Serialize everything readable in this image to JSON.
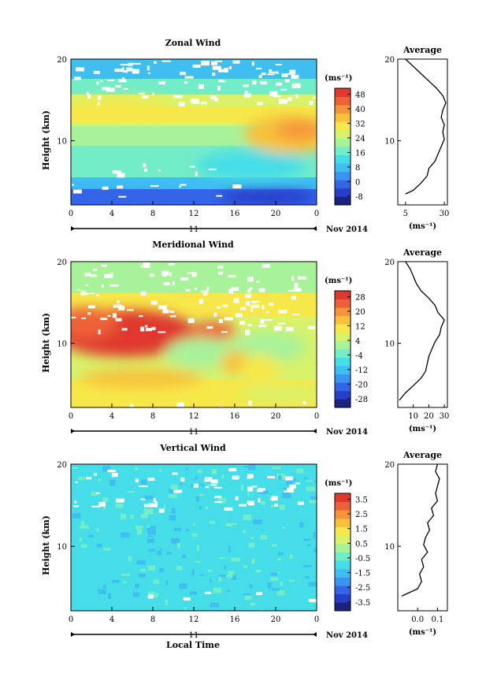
{
  "colors": {
    "scale": [
      "#1a237e",
      "#283ec8",
      "#3465e8",
      "#3b94f0",
      "#3fbef2",
      "#44dde8",
      "#73ecc8",
      "#a8f29a",
      "#d8f26a",
      "#f6e84a",
      "#f8c13a",
      "#f5943a",
      "#ee6038",
      "#e0392e"
    ]
  },
  "chart_data": [
    {
      "type": "heatmap",
      "title": "Zonal Wind",
      "xlabel": "",
      "ylabel": "Height (km)",
      "x_ticks": [
        "0",
        "4",
        "8",
        "12",
        "16",
        "20",
        "0"
      ],
      "y_ticks": [
        "20",
        "10"
      ],
      "date_day": "11",
      "date_label": "Nov 2014",
      "colorbar": {
        "unit": "(ms⁻¹)",
        "ticks": [
          "48",
          "40",
          "32",
          "24",
          "16",
          "8",
          "0",
          "-8"
        ],
        "range": [
          -8,
          48
        ]
      },
      "profile": {
        "title": "Average",
        "x_ticks": [
          "5",
          "30"
        ],
        "xlim": [
          0,
          32
        ],
        "unit": "(ms⁻¹)",
        "y_ticks": [
          "20",
          "10"
        ],
        "heights": [
          1.5,
          2,
          3,
          4,
          5,
          6,
          7,
          8,
          9,
          10,
          11,
          12,
          13,
          14,
          15,
          16,
          17,
          18,
          19,
          20
        ],
        "values": [
          5,
          10,
          15,
          19,
          20,
          24,
          26,
          28,
          30,
          29,
          30,
          28,
          29,
          31,
          29,
          25,
          20,
          15,
          10,
          5
        ]
      }
    },
    {
      "type": "heatmap",
      "title": "Meridional Wind",
      "xlabel": "",
      "ylabel": "Height (km)",
      "x_ticks": [
        "0",
        "4",
        "8",
        "12",
        "16",
        "20",
        "0"
      ],
      "y_ticks": [
        "20",
        "10"
      ],
      "date_day": "11",
      "date_label": "Nov 2014",
      "colorbar": {
        "unit": "(ms⁻¹)",
        "ticks": [
          "28",
          "20",
          "12",
          "4",
          "-4",
          "-12",
          "-20",
          "-28"
        ],
        "range": [
          -28,
          28
        ]
      },
      "profile": {
        "title": "Average",
        "x_ticks": [
          "10",
          "20",
          "30"
        ],
        "xlim": [
          0,
          32
        ],
        "unit": "(ms⁻¹)",
        "y_ticks": [
          "20",
          "10"
        ],
        "heights": [
          1,
          2,
          3,
          4,
          5,
          6,
          7,
          8,
          9,
          10,
          11,
          12,
          13,
          14,
          15,
          16,
          17,
          18,
          19,
          20
        ],
        "values": [
          1,
          5,
          10,
          15,
          18,
          19,
          20,
          22,
          24,
          27,
          28,
          30,
          26,
          24,
          20,
          15,
          12,
          10,
          8,
          5
        ]
      }
    },
    {
      "type": "heatmap",
      "title": "Vertical Wind",
      "xlabel": "Local Time",
      "ylabel": "Height (km)",
      "x_ticks": [
        "0",
        "4",
        "8",
        "12",
        "16",
        "20",
        "0"
      ],
      "y_ticks": [
        "20",
        "10"
      ],
      "date_day": "11",
      "date_label": "Nov 2014",
      "colorbar": {
        "unit": "(ms⁻¹)",
        "ticks": [
          "3.5",
          "2.5",
          "1.5",
          "0.5",
          "-0.5",
          "-1.5",
          "-2.5",
          "-3.5"
        ],
        "range": [
          -3.5,
          3.5
        ]
      },
      "profile": {
        "title": "Average",
        "x_ticks": [
          "0.0",
          "0.1"
        ],
        "xlim": [
          -0.1,
          0.15
        ],
        "unit": "(ms⁻¹)",
        "y_ticks": [
          "20",
          "10"
        ],
        "heights": [
          2,
          3,
          4,
          5,
          6,
          7,
          8,
          9,
          10,
          11,
          12,
          13,
          14,
          15,
          16,
          17,
          18,
          19,
          20
        ],
        "values": [
          -0.08,
          0.0,
          0.02,
          0.01,
          0.03,
          0.02,
          0.05,
          0.03,
          0.04,
          0.06,
          0.05,
          0.08,
          0.07,
          0.1,
          0.09,
          0.1,
          0.11,
          0.09,
          0.1
        ]
      }
    }
  ]
}
